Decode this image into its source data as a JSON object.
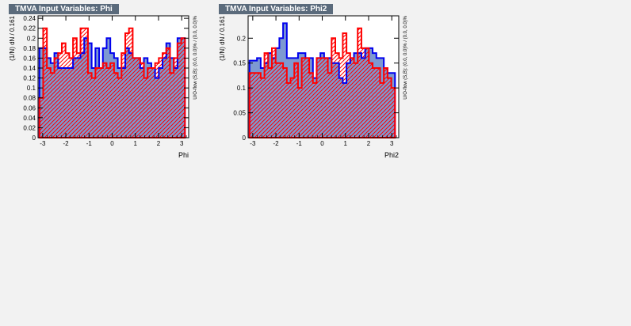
{
  "panels": [
    {
      "title": "TMVA Input Variables: Phi"
    },
    {
      "title": "TMVA Input Variables: Phi2"
    }
  ],
  "colors": {
    "signal_fill": "#7d99d1",
    "signal_line": "#0000ee",
    "background_line": "#ff0000",
    "page": "#f2f2f2"
  },
  "chart_data": [
    {
      "type": "bar",
      "subtype": "histogram-step",
      "xlabel": "Phi",
      "ylabel": "(1/N) dN / 0.161",
      "side_label": "U/O-flow (S,B): (0.0, 0.0)% / (0.0, 0.0)%",
      "xlim": [
        -3.2,
        3.3
      ],
      "ylim": [
        0,
        0.245
      ],
      "xticks": [
        -3,
        -2,
        -1,
        0,
        1,
        2,
        3
      ],
      "yticks": [
        0,
        0.02,
        0.04,
        0.06,
        0.08,
        0.1,
        0.12,
        0.14,
        0.16,
        0.18,
        0.2,
        0.22,
        0.24
      ],
      "ytick_labels": [
        "0",
        "0.02",
        "0.04",
        "0.06",
        "0.08",
        "0.1",
        "0.12",
        "0.14",
        "0.16",
        "0.18",
        "0.2",
        "0.22",
        "0.24"
      ],
      "bin_start": -3.14,
      "bin_width": 0.161,
      "series": [
        {
          "values": [
            0.18,
            0.18,
            0.16,
            0.15,
            0.17,
            0.14,
            0.14,
            0.14,
            0.14,
            0.16,
            0.16,
            0.17,
            0.2,
            0.19,
            0.14,
            0.18,
            0.14,
            0.18,
            0.2,
            0.17,
            0.16,
            0.14,
            0.14,
            0.18,
            0.17,
            0.16,
            0.16,
            0.14,
            0.16,
            0.15,
            0.14,
            0.12,
            0.14,
            0.16,
            0.19,
            0.16,
            0.14,
            0.2,
            0.2
          ]
        },
        {
          "values": [
            0.08,
            0.22,
            0.14,
            0.13,
            0.16,
            0.17,
            0.19,
            0.17,
            0.16,
            0.2,
            0.17,
            0.22,
            0.22,
            0.13,
            0.12,
            0.14,
            0.14,
            0.15,
            0.14,
            0.15,
            0.13,
            0.12,
            0.17,
            0.21,
            0.22,
            0.16,
            0.16,
            0.15,
            0.12,
            0.14,
            0.14,
            0.15,
            0.16,
            0.17,
            0.18,
            0.13,
            0.16,
            0.19,
            0.2
          ]
        }
      ]
    },
    {
      "type": "bar",
      "subtype": "histogram-step",
      "xlabel": "Phi2",
      "ylabel": "(1/N) dN / 0.161",
      "side_label": "U/O-flow (S,B): (0.0, 0.0)% / (0.0, 0.0)%",
      "xlim": [
        -3.2,
        3.3
      ],
      "ylim": [
        0,
        0.245
      ],
      "xticks": [
        -3,
        -2,
        -1,
        0,
        1,
        2,
        3
      ],
      "yticks": [
        0,
        0.05,
        0.1,
        0.15,
        0.2
      ],
      "ytick_labels": [
        "0",
        "0.05",
        "0.1",
        "0.15",
        "0.2"
      ],
      "bin_start": -3.14,
      "bin_width": 0.161,
      "series": [
        {
          "values": [
            0.155,
            0.155,
            0.16,
            0.14,
            0.15,
            0.17,
            0.16,
            0.18,
            0.2,
            0.23,
            0.16,
            0.16,
            0.16,
            0.17,
            0.17,
            0.16,
            0.16,
            0.12,
            0.16,
            0.17,
            0.16,
            0.16,
            0.15,
            0.15,
            0.12,
            0.11,
            0.15,
            0.16,
            0.17,
            0.17,
            0.16,
            0.18,
            0.18,
            0.17,
            0.16,
            0.16,
            0.14,
            0.13,
            0.13
          ]
        },
        {
          "values": [
            0.13,
            0.13,
            0.13,
            0.12,
            0.17,
            0.14,
            0.18,
            0.15,
            0.15,
            0.14,
            0.11,
            0.12,
            0.15,
            0.1,
            0.16,
            0.16,
            0.13,
            0.11,
            0.16,
            0.16,
            0.16,
            0.13,
            0.2,
            0.17,
            0.16,
            0.21,
            0.17,
            0.16,
            0.15,
            0.22,
            0.18,
            0.18,
            0.15,
            0.14,
            0.14,
            0.11,
            0.14,
            0.12,
            0.1
          ]
        }
      ]
    }
  ]
}
